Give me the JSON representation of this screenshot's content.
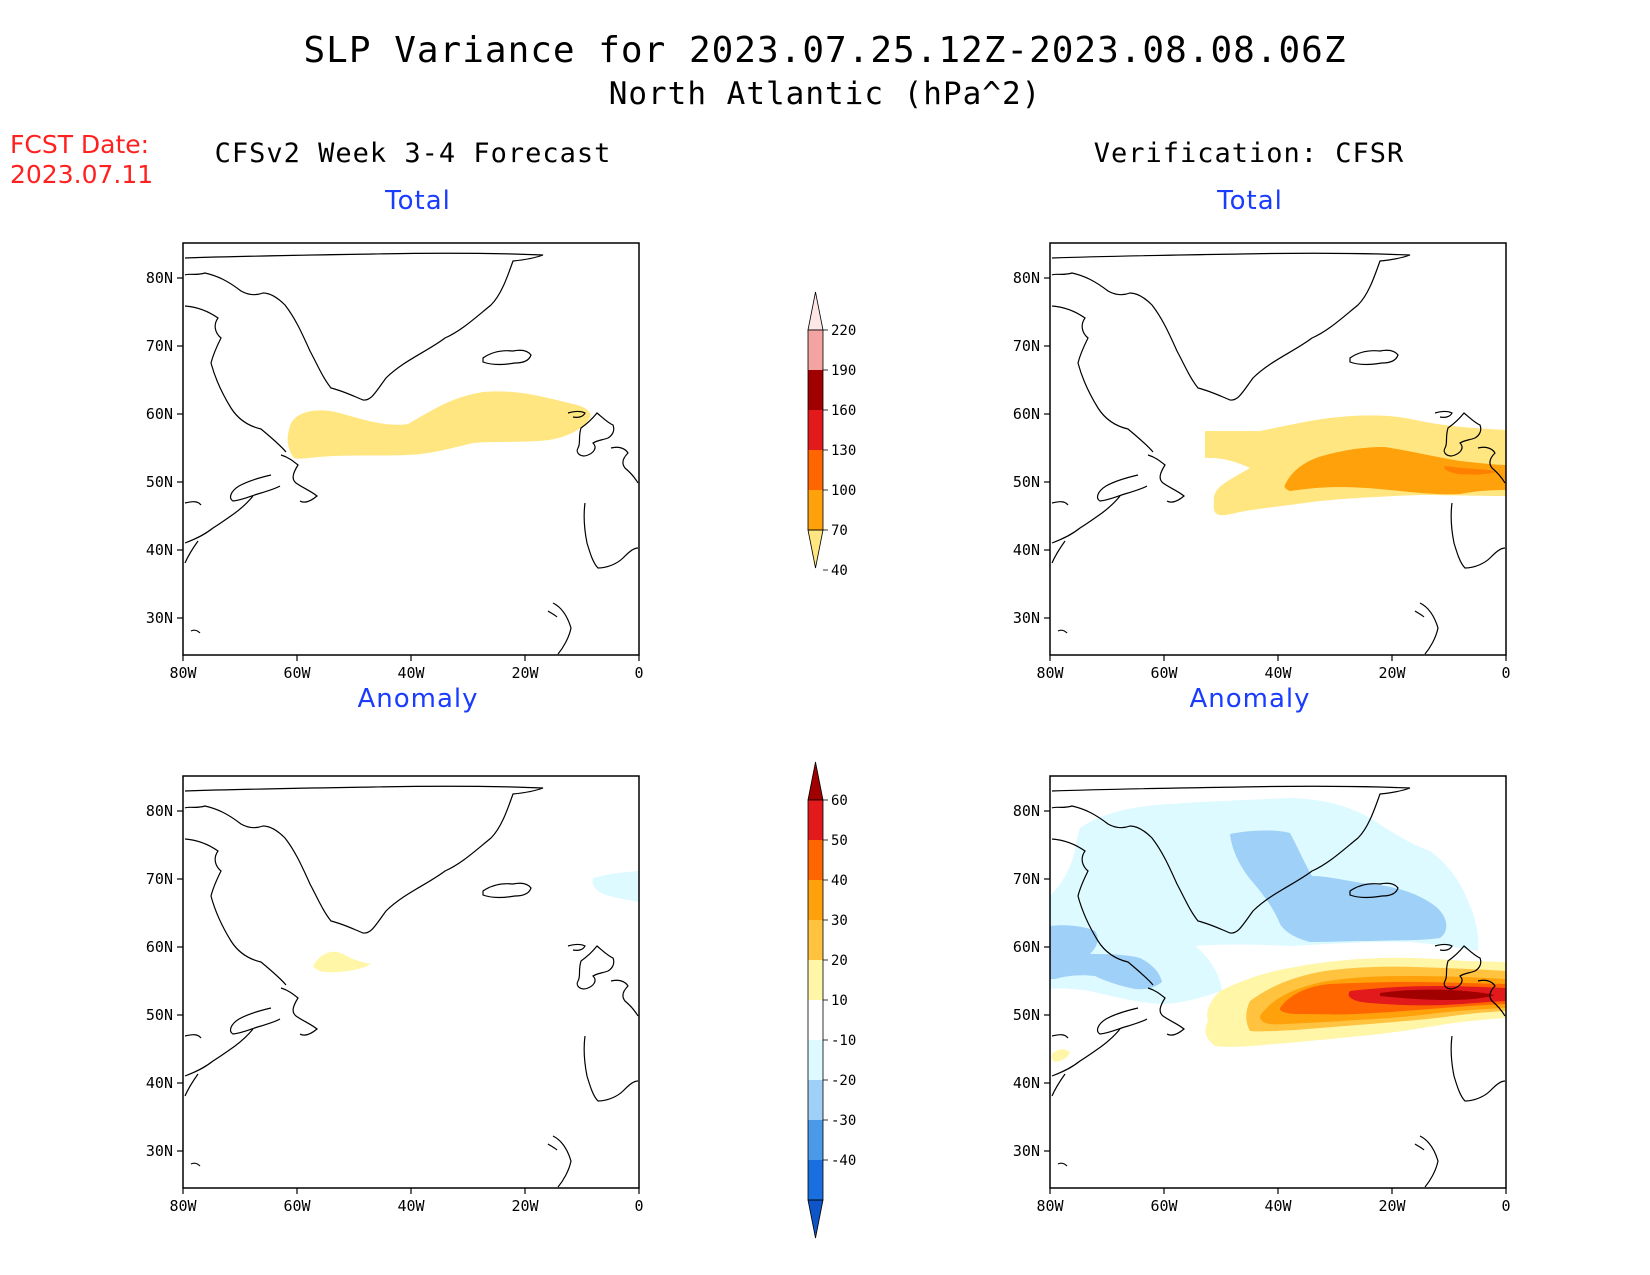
{
  "title": {
    "line1": "SLP Variance for 2023.07.25.12Z-2023.08.08.06Z",
    "line2": "North Atlantic (hPa^2)"
  },
  "fcst_date": {
    "label": "FCST Date:",
    "value": "2023.07.11"
  },
  "columns": {
    "left": "CFSv2 Week 3-4 Forecast",
    "right": "Verification: CFSR"
  },
  "panels": [
    {
      "id": "forecast-total",
      "title": "Total"
    },
    {
      "id": "verification-total",
      "title": "Total"
    },
    {
      "id": "forecast-anomaly",
      "title": "Anomaly"
    },
    {
      "id": "verification-anomaly",
      "title": "Anomaly"
    }
  ],
  "axes": {
    "lat_labels": [
      "80N",
      "70N",
      "60N",
      "50N",
      "40N",
      "30N"
    ],
    "lon_labels": [
      "80W",
      "60W",
      "40W",
      "20W",
      "0"
    ]
  },
  "colorbars": {
    "total": {
      "labels": [
        "220",
        "190",
        "160",
        "130",
        "100",
        "70",
        "40"
      ],
      "colors": [
        "#fde6e6",
        "#f4a3a3",
        "#a00000",
        "#e31a1c",
        "#ff6600",
        "#ffa10a",
        "#ffe680"
      ]
    },
    "anomaly": {
      "labels": [
        "60",
        "50",
        "40",
        "30",
        "20",
        "10",
        "-10",
        "-20",
        "-30",
        "-40"
      ],
      "colors": [
        "#a00000",
        "#e31a1c",
        "#ff6600",
        "#ffa10a",
        "#ffc340",
        "#fff6a8",
        "#ffffff",
        "#dcfaff",
        "#9fd0f7",
        "#4a9ae8",
        "#1a6fe0",
        "#0d55c8"
      ]
    }
  },
  "colors": {
    "red_label": "#ff2020",
    "panel_title": "#1a3cff"
  }
}
